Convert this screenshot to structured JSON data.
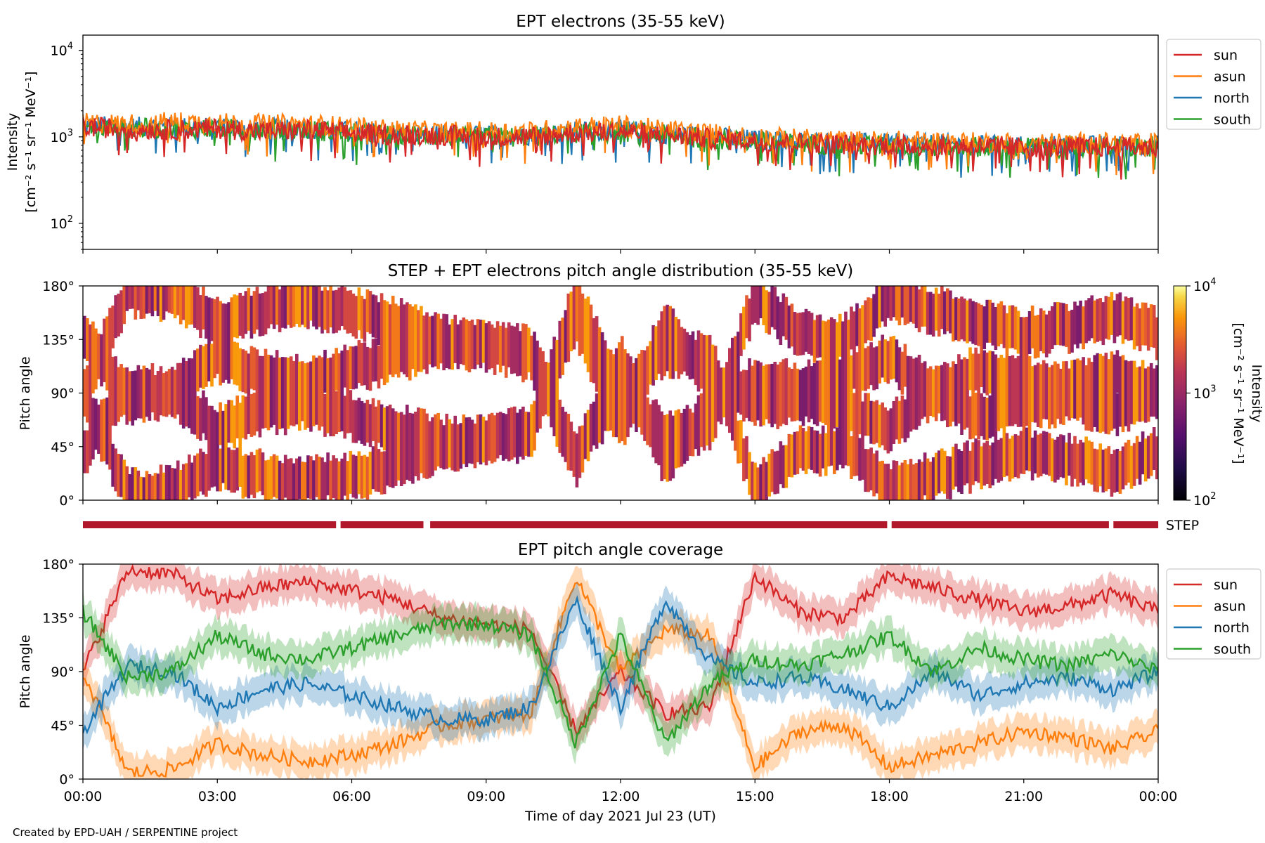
{
  "colors": {
    "sun": "#d62728",
    "asun": "#ff7f0e",
    "north": "#1f77b4",
    "south": "#2ca02c",
    "step_bar": "#b2182b"
  },
  "footer": "Created by EPD-UAH / SERPENTINE project",
  "chart_data": [
    {
      "type": "line",
      "title": "EPT electrons (35-55 keV)",
      "ylabel_line1": "Intensity",
      "ylabel_line2": "[cm⁻² s⁻¹ sr⁻¹ MeV⁻¹]",
      "yscale": "log",
      "ylim": [
        50,
        15000
      ],
      "yticks": [
        {
          "value": 100,
          "base": "10",
          "exp": "2"
        },
        {
          "value": 1000,
          "base": "10",
          "exp": "3"
        },
        {
          "value": 10000,
          "base": "10",
          "exp": "4"
        }
      ],
      "x": [
        "00:00",
        "01:00",
        "02:00",
        "03:00",
        "04:00",
        "05:00",
        "06:00",
        "07:00",
        "08:00",
        "09:00",
        "10:00",
        "11:00",
        "12:00",
        "13:00",
        "14:00",
        "15:00",
        "16:00",
        "17:00",
        "18:00",
        "19:00",
        "20:00",
        "21:00",
        "22:00",
        "23:00",
        "24:00"
      ],
      "series": [
        {
          "name": "sun",
          "values": [
            1300,
            1250,
            1200,
            1250,
            1150,
            1200,
            1100,
            1050,
            1050,
            1000,
            1000,
            1100,
            1150,
            1050,
            950,
            900,
            850,
            820,
            800,
            780,
            780,
            760,
            760,
            760,
            760
          ]
        },
        {
          "name": "asun",
          "values": [
            1450,
            1400,
            1500,
            1450,
            1400,
            1400,
            1300,
            1200,
            1150,
            1150,
            1150,
            1300,
            1350,
            1200,
            1100,
            1000,
            950,
            900,
            900,
            880,
            860,
            860,
            850,
            850,
            850
          ]
        },
        {
          "name": "north",
          "values": [
            1350,
            1300,
            1300,
            1300,
            1250,
            1250,
            1150,
            1100,
            1050,
            1050,
            1050,
            1150,
            1200,
            1100,
            1000,
            920,
            880,
            850,
            840,
            820,
            800,
            790,
            790,
            790,
            790
          ]
        },
        {
          "name": "south",
          "values": [
            1300,
            1250,
            1250,
            1250,
            1200,
            1200,
            1100,
            1050,
            1000,
            1000,
            1000,
            1100,
            1150,
            1050,
            950,
            880,
            840,
            810,
            800,
            780,
            770,
            760,
            750,
            750,
            750
          ]
        }
      ],
      "legend": "upper-right-outside"
    },
    {
      "type": "heatmap",
      "title": "STEP + EPT electrons pitch angle distribution (35-55 keV)",
      "ylabel": "Pitch angle",
      "ylim": [
        0,
        180
      ],
      "yticks": [
        "0°",
        "45°",
        "90°",
        "135°",
        "180°"
      ],
      "colorbar": {
        "label": "Intensity",
        "units": "[cm⁻² s⁻¹ sr⁻¹ MeV⁻¹]",
        "scale": "log",
        "ticks": [
          {
            "base": "10",
            "exp": "2"
          },
          {
            "base": "10",
            "exp": "3"
          },
          {
            "base": "10",
            "exp": "4"
          }
        ],
        "colormap": "inferno"
      },
      "step_label": "STEP",
      "step_coverage_hours": [
        [
          0.0,
          5.65
        ],
        [
          5.75,
          7.6
        ],
        [
          7.75,
          17.95
        ],
        [
          18.05,
          22.9
        ],
        [
          23.0,
          24.0
        ]
      ]
    },
    {
      "type": "line",
      "title": "EPT pitch angle coverage",
      "ylabel": "Pitch angle",
      "xlabel": "Time of day 2021 Jul 23 (UT)",
      "ylim": [
        0,
        180
      ],
      "yticks": [
        "0°",
        "45°",
        "90°",
        "135°",
        "180°"
      ],
      "xticks": [
        "00:00",
        "03:00",
        "06:00",
        "09:00",
        "12:00",
        "15:00",
        "18:00",
        "21:00",
        "00:00"
      ],
      "x_hours": [
        0,
        1,
        2,
        3,
        4,
        5,
        6,
        7,
        8,
        9,
        10,
        11,
        12,
        13,
        14,
        15,
        16,
        17,
        18,
        19,
        20,
        21,
        22,
        23,
        24
      ],
      "band_halfwidth_deg": 14,
      "series": [
        {
          "name": "sun",
          "values": [
            90,
            175,
            172,
            150,
            160,
            165,
            158,
            150,
            135,
            130,
            125,
            40,
            90,
            55,
            60,
            170,
            140,
            135,
            170,
            160,
            150,
            140,
            145,
            155,
            140
          ]
        },
        {
          "name": "asun",
          "values": [
            90,
            5,
            8,
            30,
            20,
            15,
            20,
            30,
            45,
            50,
            55,
            170,
            90,
            125,
            120,
            10,
            40,
            45,
            10,
            20,
            30,
            40,
            35,
            25,
            40
          ]
        },
        {
          "name": "north",
          "values": [
            40,
            95,
            90,
            60,
            75,
            80,
            70,
            60,
            50,
            50,
            60,
            150,
            60,
            150,
            100,
            80,
            85,
            75,
            60,
            90,
            70,
            80,
            85,
            75,
            90
          ]
        },
        {
          "name": "south",
          "values": [
            140,
            85,
            90,
            120,
            105,
            100,
            110,
            120,
            130,
            130,
            120,
            30,
            120,
            30,
            80,
            100,
            95,
            105,
            120,
            90,
            110,
            100,
            95,
            105,
            90
          ]
        }
      ],
      "legend": "upper-right-outside"
    }
  ]
}
